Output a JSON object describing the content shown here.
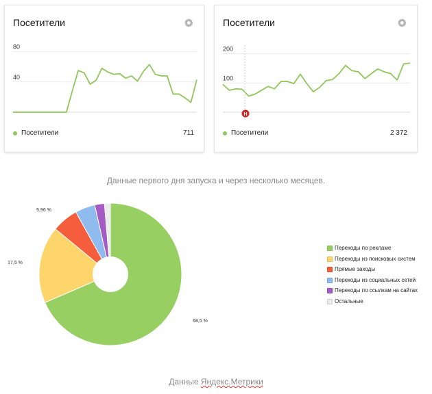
{
  "card1": {
    "title": "Посетители",
    "legend_label": "Посетители",
    "total": "711",
    "chart_data": {
      "type": "line",
      "y_ticks": [
        80,
        40
      ],
      "ylim": [
        0,
        85
      ],
      "color": "#8fc75a",
      "values": [
        0,
        0,
        0,
        0,
        0,
        0,
        0,
        0,
        0,
        0,
        28,
        55,
        52,
        37,
        42,
        58,
        53,
        50,
        51,
        45,
        48,
        41,
        54,
        63,
        50,
        48,
        48,
        24,
        24,
        19,
        13,
        43
      ]
    }
  },
  "card2": {
    "title": "Посетители",
    "legend_label": "Посетители",
    "total": "2 372",
    "marker_label": "H",
    "marker_color": "#c62828",
    "chart_data": {
      "type": "line",
      "y_ticks": [
        200,
        100
      ],
      "ylim": [
        0,
        220
      ],
      "color": "#8fc75a",
      "values": [
        95,
        75,
        80,
        78,
        55,
        62,
        75,
        88,
        80,
        105,
        105,
        98,
        130,
        98,
        70,
        85,
        108,
        112,
        132,
        160,
        142,
        138,
        115,
        132,
        148,
        138,
        132,
        110,
        165,
        168
      ]
    }
  },
  "caption1": "Данные первого дня запуска и через несколько месяцев.",
  "caption2_part1": "Данные ",
  "caption2_part2": "Яндекс.Метрики",
  "pie": {
    "chart_data": {
      "type": "pie",
      "donut": true,
      "slices": [
        {
          "name": "Переходы по рекламе",
          "value": 68.5,
          "label": "68,5 %",
          "color": "#97cf62"
        },
        {
          "name": "Переходы из поисковых систем",
          "value": 17.5,
          "label": "17,5 %",
          "color": "#fdd56b"
        },
        {
          "name": "Прямые заходы",
          "value": 5.96,
          "label": "5,96 %",
          "color": "#f45e3d"
        },
        {
          "name": "Переходы из социальных сетей",
          "value": 4.5,
          "label": "",
          "color": "#8fbbee"
        },
        {
          "name": "Переходы по ссылкам на сайтах",
          "value": 2.2,
          "label": "",
          "color": "#a45bc4"
        },
        {
          "name": "Остальные",
          "value": 1.34,
          "label": "",
          "color": "#ececec"
        }
      ]
    }
  }
}
